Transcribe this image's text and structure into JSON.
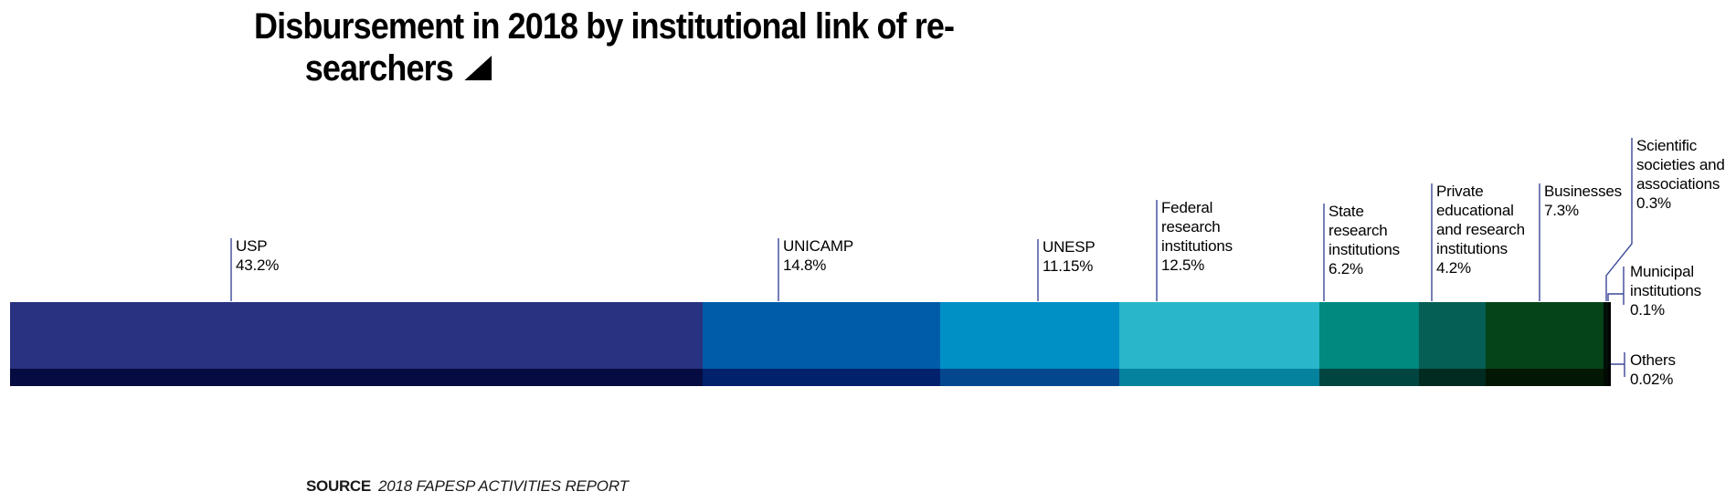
{
  "title": {
    "line1": "Disbursement in 2018 by institutional link of re-",
    "line2": "searchers"
  },
  "source": {
    "label": "SOURCE",
    "text": "2018 FAPESP ACTIVITIES REPORT"
  },
  "colors": {
    "connector_line": "#3b4898",
    "title_text": "#000000"
  },
  "chart_data": {
    "type": "bar",
    "subtype": "horizontal-stacked-single-bar",
    "title": "Disbursement in 2018 by institutional link of researchers",
    "unit": "%",
    "legend_position": "labels-above-bar",
    "segments": [
      {
        "label": "USP",
        "value": 43.2,
        "pct_label": "43.2%",
        "color": "#293280",
        "shadow": "#060b41"
      },
      {
        "label": "UNICAMP",
        "value": 14.8,
        "pct_label": "14.8%",
        "color": "#005ca8",
        "shadow": "#01216d"
      },
      {
        "label": "UNESP",
        "value": 11.15,
        "pct_label": "11.15%",
        "color": "#0090c6",
        "shadow": "#03488f"
      },
      {
        "label": "Federal research institutions",
        "value": 12.5,
        "pct_label": "12.5%",
        "color": "#29b6cb",
        "shadow": "#05829e"
      },
      {
        "label": "State research institutions",
        "value": 6.2,
        "pct_label": "6.2%",
        "color": "#00897f",
        "shadow": "#014540"
      },
      {
        "label": "Private educational and research institutions",
        "value": 4.2,
        "pct_label": "4.2%",
        "color": "#055f55",
        "shadow": "#012a21"
      },
      {
        "label": "Businesses",
        "value": 7.3,
        "pct_label": "7.3%",
        "color": "#054419",
        "shadow": "#031804"
      },
      {
        "label": "Scientific societies and associations",
        "value": 0.3,
        "pct_label": "0.3%",
        "color": "#001007",
        "shadow": "#000a03"
      },
      {
        "label": "Municipal institutions",
        "value": 0.1,
        "pct_label": "0.1%",
        "color": "#000502",
        "shadow": "#000300"
      },
      {
        "label": "Others",
        "value": 0.02,
        "pct_label": "0.02%",
        "color": "#000000",
        "shadow": "#000000"
      }
    ]
  }
}
